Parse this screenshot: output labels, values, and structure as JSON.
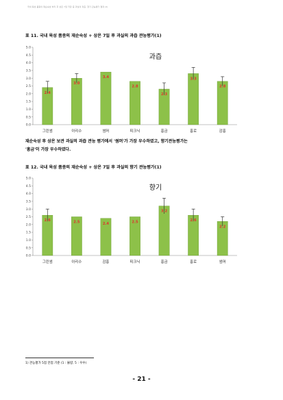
{
  "header_text": "국내 육성 품종의 재순숙성 처리 후 상온 7일 저장 중 과실의 과즙, 향기 관능평가 결과 (Ⅱ)",
  "figure11": {
    "caption": "표 11. 국내 육성 품종의 재순숙성 + 상온 7일 후 과실의 과즙 관능평가(1)",
    "chart_data": {
      "type": "bar",
      "title": "과즙",
      "categories": [
        "그린썸",
        "아리수",
        "썸머",
        "피크닉",
        "홍금",
        "홍로",
        "감홍"
      ],
      "values": [
        2.4,
        3.0,
        3.4,
        2.8,
        2.3,
        3.3,
        2.8
      ],
      "errors": [
        0.4,
        0.3,
        0.0,
        0.0,
        0.4,
        0.4,
        0.3
      ],
      "ylim": [
        0,
        5.0
      ],
      "yticks": [
        "0.0",
        "0.5",
        "1.0",
        "1.5",
        "2.0",
        "2.5",
        "3.0",
        "3.5",
        "4.0",
        "4.5",
        "5.0"
      ],
      "bar_color": "#8dc149",
      "label_color": "#e0322d"
    }
  },
  "paragraph": {
    "line1": "재순숙성 후 상온 보관 과실의 과즙 관능 평가에서 '썸머'가 가장 우수하였고, 향기관능평가는",
    "line2": "'홍금'이 가장 우수하였다."
  },
  "figure12": {
    "caption": "표 12. 국내 육성 품종의 재순숙성 + 상온 7일 후 과실의 향기 관능평가(1)",
    "chart_data": {
      "type": "bar",
      "title": "향기",
      "categories": [
        "그린썸",
        "아리수",
        "감홍",
        "피크닉",
        "홍금",
        "홍로",
        "썸머"
      ],
      "values": [
        2.6,
        2.5,
        2.4,
        2.5,
        3.2,
        2.6,
        2.2
      ],
      "errors": [
        0.4,
        0.0,
        0.0,
        0.0,
        0.5,
        0.4,
        0.3
      ],
      "ylim": [
        0,
        5.0
      ],
      "yticks": [
        "0.0",
        "0.5",
        "1.0",
        "1.5",
        "2.0",
        "2.5",
        "3.0",
        "3.5",
        "4.0",
        "4.5",
        "5.0"
      ],
      "bar_color": "#8dc149",
      "label_color": "#e0322d"
    }
  },
  "footnote": "1) 관능평가 5점 만점 기준 (1 : 불량, 5 : 우수)",
  "page_number": "- 21 -"
}
